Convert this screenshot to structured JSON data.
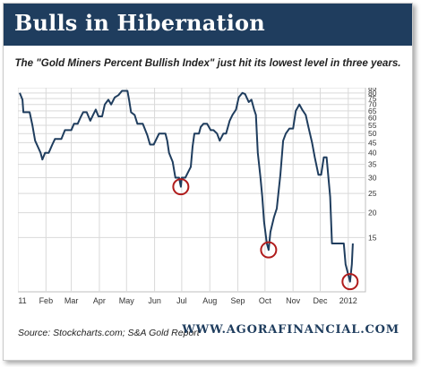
{
  "header": {
    "title": "Bulls in Hibernation"
  },
  "subtitle": "The \"Gold Miners Percent Bullish Index\" just hit its lowest level in three years.",
  "footer": {
    "source": "Source: Stockcharts.com; S&A Gold Report",
    "site": "WWW.AGORAFINANCIAL.COM"
  },
  "colors": {
    "header_bg": "#1f3d5e",
    "line": "#1f3d5e",
    "circle": "#b01c1c",
    "grid": "#d9d9d9"
  },
  "chart_data": {
    "type": "line",
    "title": "Bulls in Hibernation",
    "subtitle": "The \"Gold Miners Percent Bullish Index\" just hit its lowest level in three years.",
    "x_axis": {
      "type": "time",
      "range": [
        "2011-01-01",
        "2012-01-20"
      ],
      "ticks": [
        "2011",
        "Feb",
        "Mar",
        "Apr",
        "May",
        "Jun",
        "Jul",
        "Aug",
        "Sep",
        "Oct",
        "Nov",
        "Dec",
        "2012"
      ]
    },
    "y_axis": {
      "scale": "log",
      "range": [
        8,
        85
      ],
      "position": "right",
      "ticks": [
        85,
        80,
        75,
        70,
        65,
        60,
        55,
        50,
        45,
        40,
        35,
        30,
        25,
        20,
        15
      ]
    },
    "grid": true,
    "series": [
      {
        "values": [
          [
            "2011-01-03",
            80
          ],
          [
            "2011-01-06",
            74
          ],
          [
            "2011-01-07",
            64
          ],
          [
            "2011-01-14",
            64
          ],
          [
            "2011-01-17",
            55
          ],
          [
            "2011-01-20",
            46
          ],
          [
            "2011-01-24",
            42
          ],
          [
            "2011-01-26",
            40
          ],
          [
            "2011-01-28",
            37
          ],
          [
            "2011-01-31",
            40
          ],
          [
            "2011-02-04",
            40
          ],
          [
            "2011-02-08",
            44
          ],
          [
            "2011-02-11",
            47
          ],
          [
            "2011-02-18",
            47
          ],
          [
            "2011-02-22",
            52
          ],
          [
            "2011-03-01",
            52
          ],
          [
            "2011-03-04",
            56
          ],
          [
            "2011-03-08",
            56
          ],
          [
            "2011-03-11",
            60
          ],
          [
            "2011-03-14",
            64
          ],
          [
            "2011-03-18",
            64
          ],
          [
            "2011-03-22",
            58
          ],
          [
            "2011-03-25",
            62
          ],
          [
            "2011-03-28",
            66
          ],
          [
            "2011-03-31",
            61
          ],
          [
            "2011-04-04",
            61
          ],
          [
            "2011-04-07",
            70
          ],
          [
            "2011-04-11",
            74
          ],
          [
            "2011-04-14",
            70
          ],
          [
            "2011-04-18",
            76
          ],
          [
            "2011-04-22",
            78
          ],
          [
            "2011-04-26",
            82
          ],
          [
            "2011-05-02",
            82
          ],
          [
            "2011-05-04",
            73
          ],
          [
            "2011-05-06",
            64
          ],
          [
            "2011-05-10",
            62
          ],
          [
            "2011-05-13",
            56
          ],
          [
            "2011-05-19",
            56
          ],
          [
            "2011-05-24",
            49
          ],
          [
            "2011-05-27",
            44
          ],
          [
            "2011-05-31",
            44
          ],
          [
            "2011-06-06",
            50
          ],
          [
            "2011-06-13",
            50
          ],
          [
            "2011-06-15",
            46
          ],
          [
            "2011-06-17",
            40
          ],
          [
            "2011-06-21",
            36
          ],
          [
            "2011-06-24",
            30
          ],
          [
            "2011-06-28",
            30
          ],
          [
            "2011-06-30",
            27
          ],
          [
            "2011-07-01",
            30
          ],
          [
            "2011-07-05",
            30
          ],
          [
            "2011-07-08",
            32
          ],
          [
            "2011-07-11",
            34
          ],
          [
            "2011-07-13",
            43
          ],
          [
            "2011-07-15",
            50
          ],
          [
            "2011-07-20",
            50
          ],
          [
            "2011-07-22",
            54
          ],
          [
            "2011-07-25",
            56
          ],
          [
            "2011-07-29",
            56
          ],
          [
            "2011-08-02",
            52
          ],
          [
            "2011-08-05",
            52
          ],
          [
            "2011-08-09",
            50
          ],
          [
            "2011-08-12",
            46
          ],
          [
            "2011-08-16",
            50
          ],
          [
            "2011-08-19",
            50
          ],
          [
            "2011-08-23",
            58
          ],
          [
            "2011-08-26",
            62
          ],
          [
            "2011-08-30",
            66
          ],
          [
            "2011-09-02",
            76
          ],
          [
            "2011-09-06",
            80
          ],
          [
            "2011-09-09",
            79
          ],
          [
            "2011-09-13",
            72
          ],
          [
            "2011-09-16",
            74
          ],
          [
            "2011-09-19",
            66
          ],
          [
            "2011-09-21",
            62
          ],
          [
            "2011-09-23",
            40
          ],
          [
            "2011-09-26",
            30
          ],
          [
            "2011-09-28",
            24
          ],
          [
            "2011-09-30",
            18
          ],
          [
            "2011-10-03",
            14
          ],
          [
            "2011-10-05",
            13
          ],
          [
            "2011-10-07",
            16
          ],
          [
            "2011-10-11",
            19
          ],
          [
            "2011-10-14",
            21
          ],
          [
            "2011-10-18",
            31
          ],
          [
            "2011-10-21",
            46
          ],
          [
            "2011-10-24",
            50
          ],
          [
            "2011-10-28",
            53
          ],
          [
            "2011-11-01",
            53
          ],
          [
            "2011-11-04",
            65
          ],
          [
            "2011-11-08",
            70
          ],
          [
            "2011-11-11",
            66
          ],
          [
            "2011-11-15",
            62
          ],
          [
            "2011-11-18",
            54
          ],
          [
            "2011-11-22",
            45
          ],
          [
            "2011-11-25",
            38
          ],
          [
            "2011-11-29",
            31
          ],
          [
            "2011-12-02",
            31
          ],
          [
            "2011-12-05",
            38
          ],
          [
            "2011-12-08",
            38
          ],
          [
            "2011-12-12",
            24
          ],
          [
            "2011-12-14",
            14
          ],
          [
            "2011-12-19",
            14
          ],
          [
            "2011-12-23",
            14
          ],
          [
            "2011-12-27",
            14
          ],
          [
            "2011-12-29",
            11
          ],
          [
            "2012-01-03",
            9
          ],
          [
            "2012-01-05",
            11
          ],
          [
            "2012-01-06",
            14
          ]
        ]
      }
    ],
    "annotations": [
      {
        "type": "circle",
        "x": "2011-06-30",
        "y": 27
      },
      {
        "type": "circle",
        "x": "2011-10-05",
        "y": 13
      },
      {
        "type": "circle",
        "x": "2012-01-03",
        "y": 9
      }
    ]
  }
}
